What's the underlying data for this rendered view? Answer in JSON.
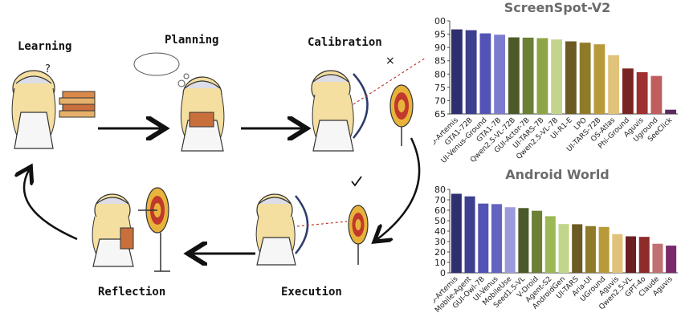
{
  "illustration": {
    "stages": {
      "learning": "Learning",
      "planning": "Planning",
      "calibration": "Calibration",
      "execution": "Execution",
      "reflection": "Reflection"
    }
  },
  "chart_data": [
    {
      "type": "bar",
      "title": "ScreenSpot-V2",
      "categories": [
        "D-Artemis",
        "GTA1-72B",
        "UI-Venus-Ground",
        "GTA1-7B",
        "Qwen2.5-VL-72B",
        "GUI-Actor-7B",
        "UI-TARS-7B",
        "Qwen2.5-VL-7B",
        "UI-R1-E",
        "LPO",
        "UI-TARS-72B",
        "OS-Atlas",
        "Phi-Ground",
        "Aguvis",
        "Uground",
        "SeeClick"
      ],
      "values": [
        96.8,
        96.5,
        95.3,
        94.8,
        93.8,
        93.7,
        93.5,
        93.0,
        92.3,
        91.8,
        91.2,
        87.1,
        82.1,
        80.7,
        79.3,
        66.6
      ],
      "colors": [
        "#2e2f6e",
        "#3d3f8f",
        "#5353b5",
        "#7c7ccf",
        "#4c5a2a",
        "#6b7f35",
        "#8ea545",
        "#c3d58a",
        "#6b5a22",
        "#8f7a28",
        "#b99a3b",
        "#e0c27a",
        "#7a2323",
        "#9e3030",
        "#c05e5e",
        "#5a2a60"
      ],
      "ylim": [
        65,
        100
      ],
      "yticks": [
        65,
        70,
        75,
        80,
        85,
        90,
        95,
        100
      ]
    },
    {
      "type": "bar",
      "title": "Android World",
      "categories": [
        "D-Artemis",
        "Mobile-Agent",
        "GUI-Owl-7B",
        "UI-Venus",
        "MobileUse",
        "Seed1.5-VL",
        "V-Droid",
        "Agent-S2",
        "AndroidGen",
        "UI-TARS",
        "Aria-UI",
        "UGround",
        "Aguvis",
        "Qwen2.5-VL",
        "GPT-4o",
        "Claude",
        "Aguvis"
      ],
      "values": [
        75.8,
        73.3,
        66.4,
        65.9,
        62.9,
        62.1,
        59.5,
        54.3,
        46.8,
        46.6,
        44.8,
        44.0,
        37.1,
        35.0,
        34.5,
        27.9,
        26.1
      ],
      "colors": [
        "#2e2f6e",
        "#3d3f8f",
        "#5353b5",
        "#6262c0",
        "#9b9bdb",
        "#4c5a2a",
        "#6b7f35",
        "#9cb855",
        "#c3d58a",
        "#6b5a22",
        "#8f7a28",
        "#b99a3b",
        "#e0c27a",
        "#6b1f1f",
        "#8e2b2b",
        "#c07070",
        "#7a2a6a"
      ],
      "ylim": [
        0,
        80
      ],
      "yticks": [
        0,
        10,
        20,
        30,
        40,
        50,
        60,
        70,
        80
      ]
    }
  ]
}
